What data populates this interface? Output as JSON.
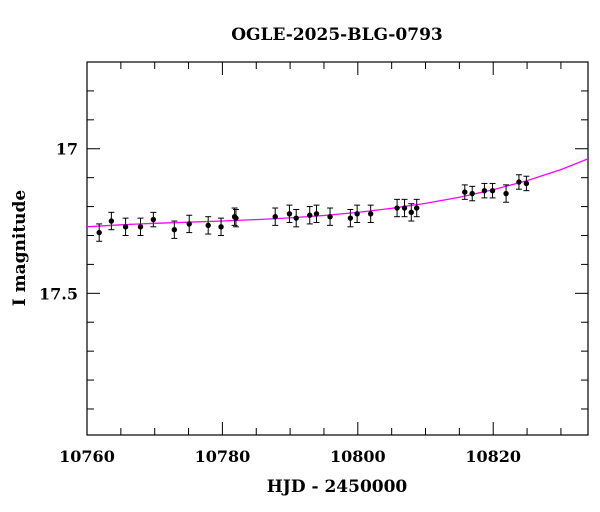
{
  "chart_data": {
    "type": "scatter",
    "title": "OGLE-2025-BLG-0793",
    "xlabel": "HJD - 2450000",
    "ylabel": "I magnitude",
    "xlim": [
      10760,
      10834
    ],
    "ylim": [
      17.99,
      16.7
    ],
    "y_inverted": true,
    "grid": false,
    "x_ticks": [
      10760,
      10780,
      10800,
      10820
    ],
    "x_minor_step": 5,
    "y_ticks": [
      17,
      17.5
    ],
    "y_minor_step": 0.1,
    "series": [
      {
        "kind": "points-with-errorbars",
        "color": "#000000",
        "x": [
          10761.8,
          10763.6,
          10765.7,
          10767.9,
          10769.8,
          10772.9,
          10775.1,
          10777.9,
          10779.8,
          10781.8,
          10782.0,
          10787.8,
          10789.9,
          10790.9,
          10792.9,
          10793.9,
          10795.9,
          10798.9,
          10799.9,
          10801.9,
          10805.8,
          10806.9,
          10807.9,
          10808.7,
          10815.8,
          10816.9,
          10818.7,
          10819.9,
          10821.9,
          10823.8,
          10824.9
        ],
        "y": [
          17.29,
          17.25,
          17.27,
          17.27,
          17.245,
          17.28,
          17.26,
          17.265,
          17.27,
          17.235,
          17.24,
          17.235,
          17.225,
          17.24,
          17.23,
          17.225,
          17.235,
          17.24,
          17.225,
          17.225,
          17.205,
          17.205,
          17.22,
          17.205,
          17.15,
          17.155,
          17.145,
          17.145,
          17.155,
          17.115,
          17.12
        ],
        "err": [
          0.03,
          0.03,
          0.03,
          0.03,
          0.025,
          0.03,
          0.03,
          0.03,
          0.03,
          0.03,
          0.03,
          0.03,
          0.03,
          0.03,
          0.03,
          0.03,
          0.03,
          0.03,
          0.03,
          0.03,
          0.03,
          0.03,
          0.03,
          0.03,
          0.025,
          0.025,
          0.025,
          0.025,
          0.03,
          0.025,
          0.025
        ]
      },
      {
        "kind": "model-curve",
        "color": "#ff00ff",
        "x": [
          10760,
          10765,
          10770,
          10775,
          10780,
          10785,
          10790,
          10795,
          10800,
          10805,
          10810,
          10815,
          10820,
          10825,
          10830,
          10834
        ],
        "y": [
          17.27,
          17.263,
          17.258,
          17.254,
          17.25,
          17.245,
          17.239,
          17.231,
          17.22,
          17.206,
          17.189,
          17.168,
          17.142,
          17.11,
          17.072,
          17.035
        ]
      }
    ]
  }
}
